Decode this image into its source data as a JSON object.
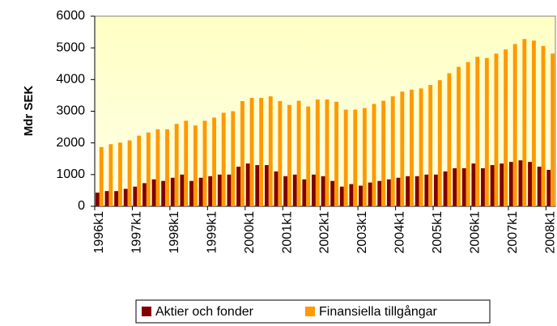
{
  "chart_data": {
    "type": "bar",
    "y_label": "Mdr SEK",
    "categories": [
      "1996k1",
      null,
      null,
      null,
      "1997k1",
      null,
      null,
      null,
      "1998k1",
      null,
      null,
      null,
      "1999k1",
      null,
      null,
      null,
      "2000k1",
      null,
      null,
      null,
      "2001k1",
      null,
      null,
      null,
      "2002k1",
      null,
      null,
      null,
      "2003k1",
      null,
      null,
      null,
      "2004k1",
      null,
      null,
      null,
      "2005k1",
      null,
      null,
      null,
      "2006k1",
      null,
      null,
      null,
      "2007k1",
      null,
      null,
      null,
      "2008k1"
    ],
    "series": [
      {
        "name": "Aktier och fonder",
        "color": "#800000",
        "values": [
          430,
          480,
          480,
          550,
          620,
          730,
          850,
          800,
          900,
          1000,
          800,
          900,
          950,
          1000,
          1000,
          1250,
          1350,
          1300,
          1300,
          1100,
          950,
          1000,
          850,
          1000,
          950,
          800,
          620,
          700,
          650,
          750,
          800,
          850,
          900,
          950,
          950,
          1000,
          1000,
          1100,
          1200,
          1200,
          1350,
          1200,
          1300,
          1350,
          1400,
          1450,
          1400,
          1250,
          1150
        ]
      },
      {
        "name": "Finansiella tillgångar",
        "color": "#ff9900",
        "values": [
          1870,
          1960,
          2010,
          2080,
          2230,
          2330,
          2430,
          2430,
          2600,
          2700,
          2550,
          2700,
          2800,
          2950,
          3000,
          3320,
          3420,
          3420,
          3470,
          3320,
          3200,
          3330,
          3150,
          3370,
          3370,
          3300,
          3050,
          3050,
          3100,
          3230,
          3330,
          3470,
          3620,
          3680,
          3720,
          3830,
          3980,
          4200,
          4400,
          4550,
          4720,
          4680,
          4820,
          4950,
          5120,
          5280,
          5230,
          5060,
          4820
        ]
      }
    ],
    "ylim": [
      0,
      6000
    ],
    "yticks": [
      0,
      1000,
      2000,
      3000,
      4000,
      5000,
      6000
    ],
    "grid": false
  }
}
